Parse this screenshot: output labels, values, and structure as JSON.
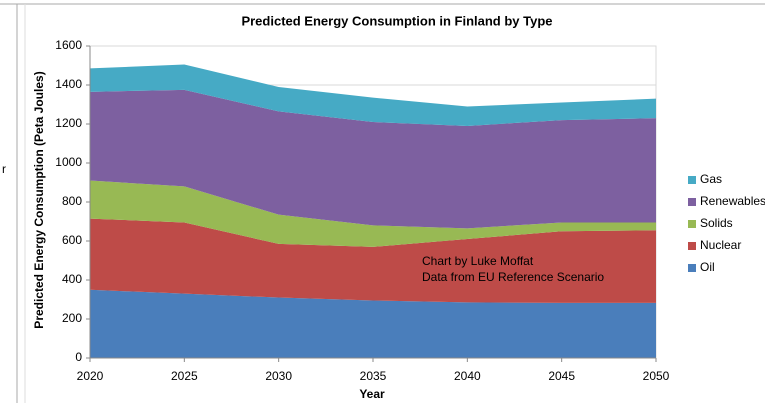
{
  "fragment": "r",
  "chart_data": {
    "type": "stacked_area",
    "title": "Predicted Energy Consumption in Finland by Type",
    "x_label": "Year",
    "y_label": "Predicted Energy Consumption (Peta Joules)",
    "annotations": [
      "Chart by Luke Moffat",
      "Data from EU Reference Scenario"
    ],
    "x": [
      2020,
      2025,
      2030,
      2035,
      2040,
      2045,
      2050
    ],
    "xlim": [
      2020,
      2050
    ],
    "xticks": [
      2020,
      2025,
      2030,
      2035,
      2040,
      2045,
      2050
    ],
    "ylim": [
      0,
      1600
    ],
    "yticks": [
      0,
      200,
      400,
      600,
      800,
      1000,
      1200,
      1400,
      1600
    ],
    "grid": true,
    "legend": "right",
    "series": [
      {
        "name": "Oil",
        "color": "#4a7ebb",
        "values": [
          350,
          330,
          310,
          295,
          285,
          283,
          283
        ]
      },
      {
        "name": "Nuclear",
        "color": "#be4b48",
        "values": [
          365,
          365,
          275,
          275,
          325,
          367,
          372
        ]
      },
      {
        "name": "Solids",
        "color": "#98b954",
        "values": [
          195,
          185,
          150,
          110,
          55,
          45,
          40
        ]
      },
      {
        "name": "Renewables",
        "color": "#7d60a0",
        "values": [
          455,
          495,
          530,
          530,
          525,
          525,
          535
        ]
      },
      {
        "name": "Gas",
        "color": "#46aac5",
        "values": [
          120,
          130,
          125,
          125,
          100,
          90,
          100
        ]
      }
    ]
  }
}
